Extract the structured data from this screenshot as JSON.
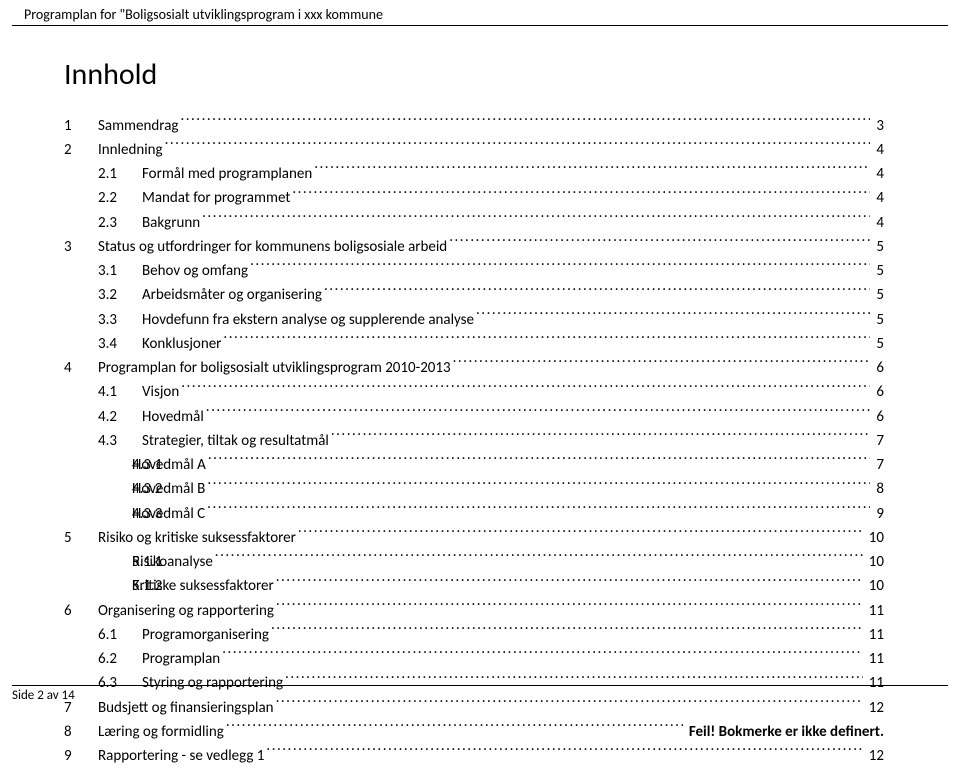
{
  "header": "Programplan for \"Boligsosialt utviklingsprogram i xxx kommune",
  "title": "Innhold",
  "footer": "Side 2 av 14",
  "toc": [
    {
      "indent": 0,
      "num": "1",
      "label": "Sammendrag",
      "page": "3"
    },
    {
      "indent": 0,
      "num": "2",
      "label": "Innledning",
      "page": "4"
    },
    {
      "indent": 1,
      "num": "2.1",
      "label": "Formål med programplanen",
      "page": "4"
    },
    {
      "indent": 1,
      "num": "2.2",
      "label": "Mandat for programmet",
      "page": "4"
    },
    {
      "indent": 1,
      "num": "2.3",
      "label": "Bakgrunn",
      "page": "4"
    },
    {
      "indent": 0,
      "num": "3",
      "label": "Status og utfordringer for kommunens boligsosiale arbeid",
      "page": "5"
    },
    {
      "indent": 1,
      "num": "3.1",
      "label": "Behov og omfang",
      "page": "5"
    },
    {
      "indent": 1,
      "num": "3.2",
      "label": "Arbeidsmåter og organisering",
      "page": "5"
    },
    {
      "indent": 1,
      "num": "3.3",
      "label": "Hovdefunn fra ekstern analyse og supplerende analyse",
      "page": "5"
    },
    {
      "indent": 1,
      "num": "3.4",
      "label": "Konklusjoner",
      "page": "5"
    },
    {
      "indent": 0,
      "num": "4",
      "label": "Programplan for boligsosialt utviklingsprogram 2010-2013",
      "page": "6"
    },
    {
      "indent": 1,
      "num": "4.1",
      "label": "Visjon",
      "page": "6"
    },
    {
      "indent": 1,
      "num": "4.2",
      "label": "Hovedmål",
      "page": "6"
    },
    {
      "indent": 1,
      "num": "4.3",
      "label": "Strategier, tiltak og resultatmål",
      "page": "7"
    },
    {
      "indent": 2,
      "num": "4.3.1",
      "label": "Hovedmål A",
      "page": "7"
    },
    {
      "indent": 2,
      "num": "4.3.2",
      "label": "Hovedmål B",
      "page": "8"
    },
    {
      "indent": 2,
      "num": "4.3.3",
      "label": "Hovedmål C",
      "page": "9"
    },
    {
      "indent": 0,
      "num": "5",
      "label": "Risiko og kritiske suksessfaktorer",
      "page": "10"
    },
    {
      "indent": 2,
      "num": "5.1.1",
      "label": "Risikoanalyse",
      "page": "10"
    },
    {
      "indent": 2,
      "num": "5.1.2",
      "label": "Kritiske suksessfaktorer",
      "page": "10"
    },
    {
      "indent": 0,
      "num": "6",
      "label": "Organisering og rapportering",
      "page": "11"
    },
    {
      "indent": 1,
      "num": "6.1",
      "label": "Programorganisering",
      "page": "11"
    },
    {
      "indent": 1,
      "num": "6.2",
      "label": "Programplan",
      "page": "11"
    },
    {
      "indent": 1,
      "num": "6.3",
      "label": "Styring og rapportering",
      "page": "11"
    },
    {
      "indent": 0,
      "num": "7",
      "label": "Budsjett og finansieringsplan",
      "page": "12"
    },
    {
      "indent": 0,
      "num": "8",
      "label": "Læring og formidling",
      "tail": "Feil! Bokmerke er ikke definert."
    },
    {
      "indent": 0,
      "num": "9",
      "label": "Rapportering - se vedlegg 1",
      "page": "12"
    }
  ]
}
